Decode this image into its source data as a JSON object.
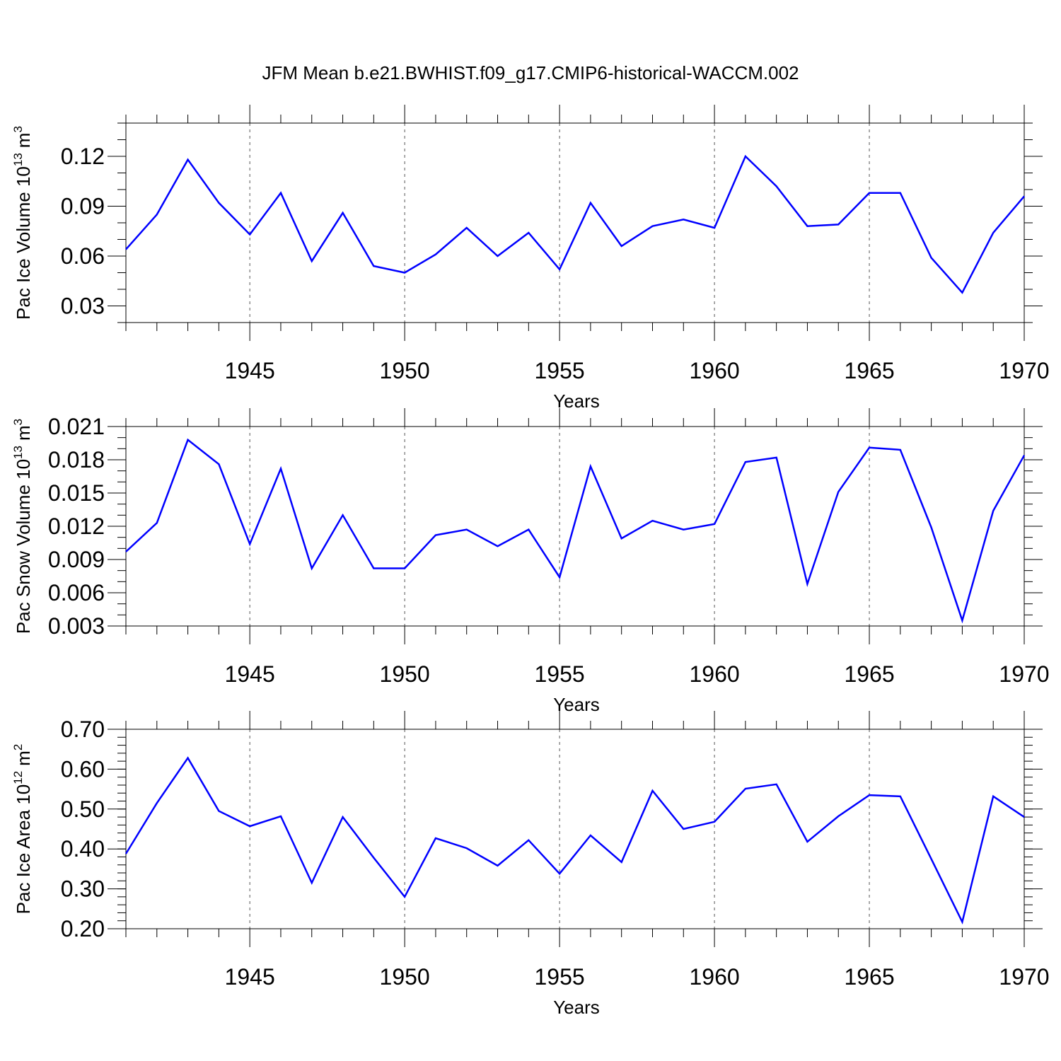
{
  "title": "JFM Mean b.e21.BWHIST.f09_g17.CMIP6-historical-WACCM.002",
  "line_color": "#0000ff",
  "chart_data": [
    {
      "type": "line",
      "ylabel_main": "Pac Ice Volume 10",
      "ylabel_exp": "13",
      "ylabel_unit": "m",
      "ylabel_unit_exp": "3",
      "xlabel": "Years",
      "xlim": [
        1941,
        1970
      ],
      "ylim": [
        0.02,
        0.14
      ],
      "xticks": [
        1945,
        1950,
        1955,
        1960,
        1965,
        1970
      ],
      "yticks": [
        0.03,
        0.06,
        0.09,
        0.12
      ],
      "ytick_labels": [
        "0.03",
        "0.06",
        "0.09",
        "0.12"
      ],
      "yminor": 0.01,
      "grid": "x-major-dashed",
      "x": [
        1941,
        1942,
        1943,
        1944,
        1945,
        1946,
        1947,
        1948,
        1949,
        1950,
        1951,
        1952,
        1953,
        1954,
        1955,
        1956,
        1957,
        1958,
        1959,
        1960,
        1961,
        1962,
        1963,
        1964,
        1965,
        1966,
        1967,
        1968,
        1969,
        1970
      ],
      "values": [
        0.064,
        0.085,
        0.118,
        0.092,
        0.073,
        0.098,
        0.057,
        0.086,
        0.054,
        0.05,
        0.061,
        0.077,
        0.06,
        0.074,
        0.052,
        0.092,
        0.066,
        0.078,
        0.082,
        0.077,
        0.12,
        0.102,
        0.078,
        0.079,
        0.098,
        0.098,
        0.059,
        0.038,
        0.074,
        0.096
      ]
    },
    {
      "type": "line",
      "ylabel_main": "Pac Snow Volume 10",
      "ylabel_exp": "13",
      "ylabel_unit": "m",
      "ylabel_unit_exp": "3",
      "xlabel": "Years",
      "xlim": [
        1941,
        1970
      ],
      "ylim": [
        0.003,
        0.021
      ],
      "xticks": [
        1945,
        1950,
        1955,
        1960,
        1965,
        1970
      ],
      "yticks": [
        0.003,
        0.006,
        0.009,
        0.012,
        0.015,
        0.018,
        0.021
      ],
      "ytick_labels": [
        "0.003",
        "0.006",
        "0.009",
        "0.012",
        "0.015",
        "0.018",
        "0.021"
      ],
      "yminor": 0.001,
      "grid": "x-major-dashed",
      "x": [
        1941,
        1942,
        1943,
        1944,
        1945,
        1946,
        1947,
        1948,
        1949,
        1950,
        1951,
        1952,
        1953,
        1954,
        1955,
        1956,
        1957,
        1958,
        1959,
        1960,
        1961,
        1962,
        1963,
        1964,
        1965,
        1966,
        1967,
        1968,
        1969,
        1970
      ],
      "values": [
        0.0097,
        0.0123,
        0.0198,
        0.0176,
        0.0104,
        0.0172,
        0.0082,
        0.013,
        0.0082,
        0.0082,
        0.0112,
        0.0117,
        0.0102,
        0.0117,
        0.0074,
        0.0174,
        0.0109,
        0.0125,
        0.0117,
        0.0122,
        0.0178,
        0.0182,
        0.0068,
        0.0151,
        0.0191,
        0.0189,
        0.0119,
        0.0035,
        0.0134,
        0.0184
      ]
    },
    {
      "type": "line",
      "ylabel_main": "Pac Ice Area 10",
      "ylabel_exp": "12",
      "ylabel_unit": "m",
      "ylabel_unit_exp": "2",
      "xlabel": "Years",
      "xlim": [
        1941,
        1970
      ],
      "ylim": [
        0.2,
        0.7
      ],
      "xticks": [
        1945,
        1950,
        1955,
        1960,
        1965,
        1970
      ],
      "yticks": [
        0.2,
        0.3,
        0.4,
        0.5,
        0.6,
        0.7
      ],
      "ytick_labels": [
        "0.20",
        "0.30",
        "0.40",
        "0.50",
        "0.60",
        "0.70"
      ],
      "yminor": 0.02,
      "grid": "x-major-dashed",
      "x": [
        1941,
        1942,
        1943,
        1944,
        1945,
        1946,
        1947,
        1948,
        1949,
        1950,
        1951,
        1952,
        1953,
        1954,
        1955,
        1956,
        1957,
        1958,
        1959,
        1960,
        1961,
        1962,
        1963,
        1964,
        1965,
        1966,
        1967,
        1968,
        1969,
        1970
      ],
      "values": [
        0.388,
        0.515,
        0.628,
        0.495,
        0.457,
        0.482,
        0.315,
        0.48,
        0.378,
        0.28,
        0.427,
        0.402,
        0.358,
        0.422,
        0.338,
        0.434,
        0.367,
        0.546,
        0.45,
        0.468,
        0.551,
        0.562,
        0.418,
        0.482,
        0.535,
        0.532,
        0.375,
        0.217,
        0.532,
        0.48
      ]
    }
  ]
}
